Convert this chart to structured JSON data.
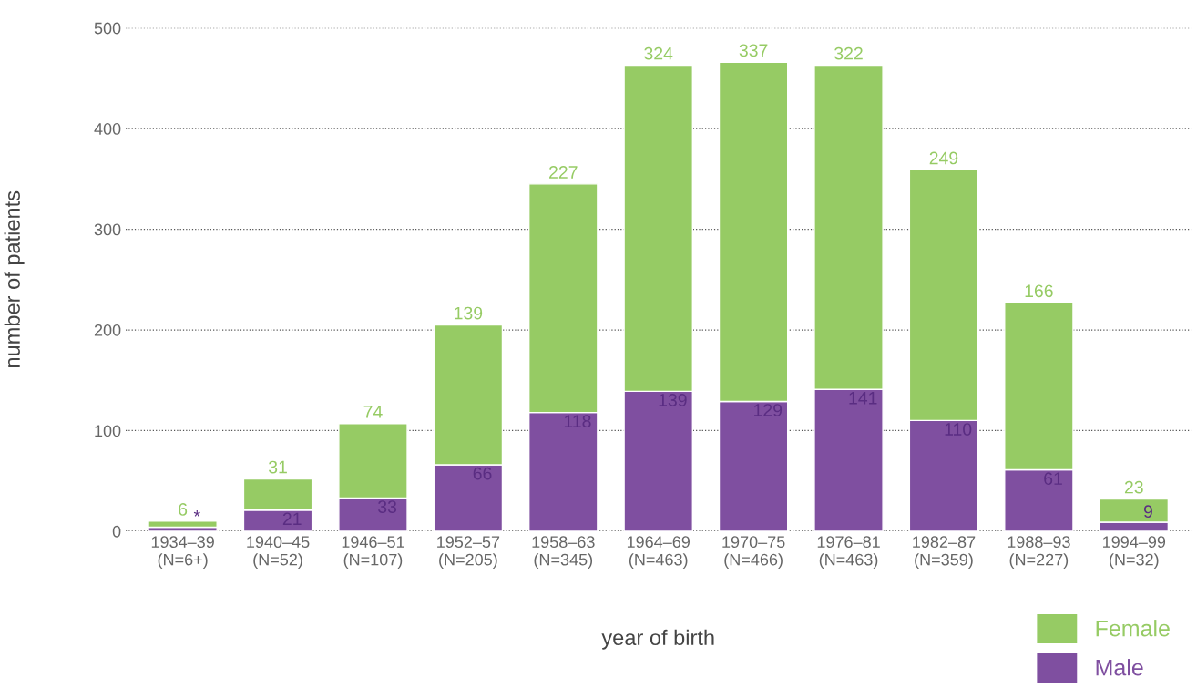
{
  "chart_data": {
    "type": "bar",
    "stacked": true,
    "xlabel": "year of birth",
    "ylabel": "number of patients",
    "categories": [
      "1934–39\n(N=6+)",
      "1940–45\n(N=52)",
      "1946–51\n(N=107)",
      "1952–57\n(N=205)",
      "1958–63\n(N=345)",
      "1964–69\n(N=463)",
      "1970–75\n(N=466)",
      "1976–81\n(N=463)",
      "1982–87\n(N=359)",
      "1988–93\n(N=227)",
      "1994–99\n(N=32)"
    ],
    "series": [
      {
        "name": "Male",
        "color": "#7f4fa0",
        "values": [
          4,
          21,
          33,
          66,
          118,
          139,
          129,
          141,
          110,
          61,
          9
        ],
        "value_labels": [
          "*",
          "21",
          "33",
          "66",
          "118",
          "139",
          "129",
          "141",
          "110",
          "61",
          "9"
        ]
      },
      {
        "name": "Female",
        "color": "#96cb64",
        "values": [
          6,
          31,
          74,
          139,
          227,
          324,
          337,
          322,
          249,
          166,
          23
        ],
        "value_labels": [
          "6",
          "31",
          "74",
          "139",
          "227",
          "324",
          "337",
          "322",
          "249",
          "166",
          "23"
        ]
      }
    ],
    "ylim": [
      0,
      500
    ],
    "yticks": [
      0,
      100,
      200,
      300,
      400,
      500
    ],
    "grid": "y",
    "legend": "bottom right"
  }
}
